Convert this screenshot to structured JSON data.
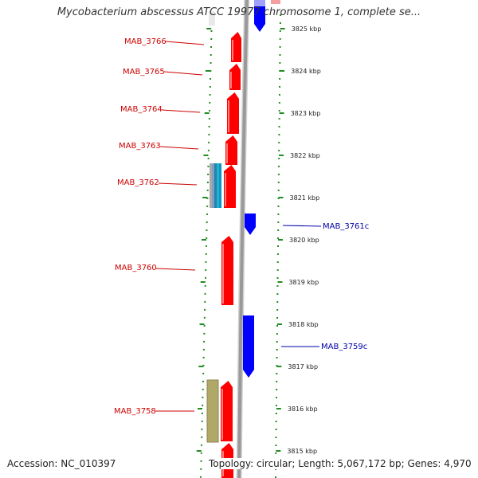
{
  "title": "Mycobacterium abscessus ATCC 19977 chromosome 1, complete se...",
  "footer": {
    "accession": "Accession: NC_010397",
    "summary": "Topology: circular; Length: 5,067,172 bp; Genes: 4,970"
  },
  "colors": {
    "forward_gene": "#ff0000",
    "reverse_gene": "#0000ff",
    "backbone": "#999999",
    "tick": "#228b22",
    "forward_label": "#cc0000",
    "reverse_label": "#0000aa"
  },
  "scale": {
    "ticks": [
      {
        "label": "3825 kbp"
      },
      {
        "label": "3824 kbp"
      },
      {
        "label": "3823 kbp"
      },
      {
        "label": "3822 kbp"
      },
      {
        "label": "3821 kbp"
      },
      {
        "label": "3820 kbp"
      },
      {
        "label": "3819 kbp"
      },
      {
        "label": "3818 kbp"
      },
      {
        "label": "3817 kbp"
      },
      {
        "label": "3816 kbp"
      },
      {
        "label": "3815 kbp"
      }
    ]
  },
  "genes": [
    {
      "name": "MAB_3766",
      "strand": "forward"
    },
    {
      "name": "MAB_3765",
      "strand": "forward"
    },
    {
      "name": "MAB_3764",
      "strand": "forward"
    },
    {
      "name": "MAB_3763",
      "strand": "forward"
    },
    {
      "name": "MAB_3762",
      "strand": "forward"
    },
    {
      "name": "MAB_3761c",
      "strand": "reverse"
    },
    {
      "name": "MAB_3760",
      "strand": "forward"
    },
    {
      "name": "MAB_3759c",
      "strand": "reverse"
    },
    {
      "name": "MAB_3758",
      "strand": "forward"
    }
  ]
}
